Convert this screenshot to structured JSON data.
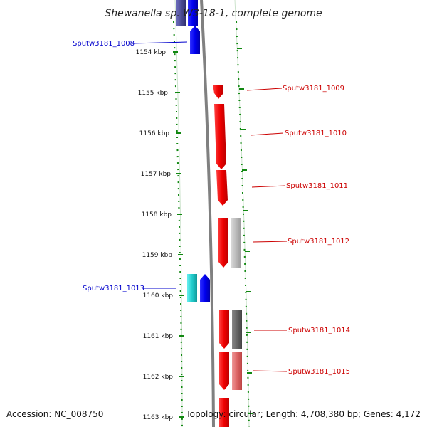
{
  "title": "Shewanella sp. W3-18-1, complete genome",
  "footer": {
    "accession": "Accession: NC_008750",
    "topology": "Topology: circular; Length: 4,708,380 bp; Genes: 4,172"
  },
  "ticks": [
    "1154 kbp",
    "1155 kbp",
    "1156 kbp",
    "1157 kbp",
    "1158 kbp",
    "1159 kbp",
    "1160 kbp",
    "1161 kbp",
    "1162 kbp",
    "1163 kbp"
  ],
  "genes": [
    {
      "name": "Sputw3181_1008",
      "strand": "reverse",
      "color": "#0000ee"
    },
    {
      "name": "Sputw3181_1009",
      "strand": "forward",
      "color": "#dd0000"
    },
    {
      "name": "Sputw3181_1010",
      "strand": "forward",
      "color": "#dd0000"
    },
    {
      "name": "Sputw3181_1011",
      "strand": "forward",
      "color": "#dd0000"
    },
    {
      "name": "Sputw3181_1012",
      "strand": "forward",
      "color": "#dd0000"
    },
    {
      "name": "Sputw3181_1013",
      "strand": "reverse",
      "color": "#0000ee"
    },
    {
      "name": "Sputw3181_1014",
      "strand": "forward",
      "color": "#dd0000"
    },
    {
      "name": "Sputw3181_1015",
      "strand": "forward",
      "color": "#dd0000"
    }
  ],
  "colors": {
    "forward": "#ff0000",
    "reverse": "#0000ff",
    "forward_label": "#dd0000",
    "reverse_label": "#0000cc",
    "cyan_feature": "#22cccc",
    "tick": "#118811",
    "backbone": "#808080"
  }
}
